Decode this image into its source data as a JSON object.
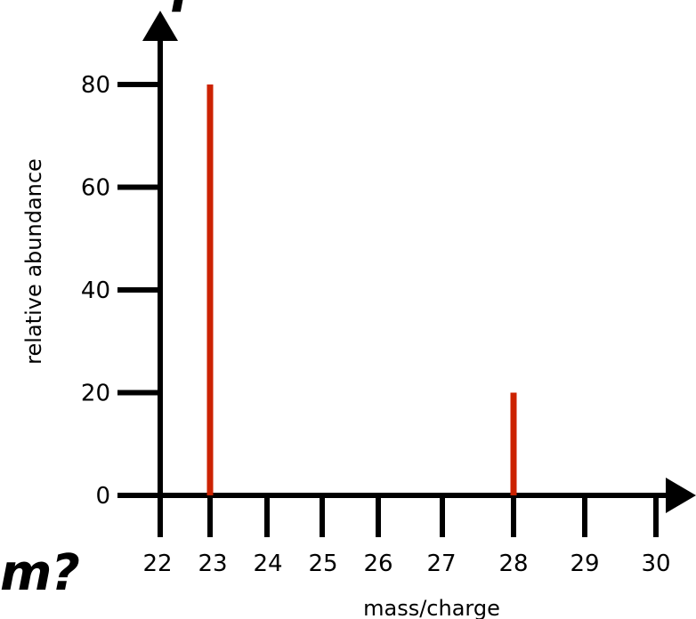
{
  "fragments": {
    "top": "f",
    "bottom": "m?"
  },
  "chart_data": {
    "type": "bar",
    "x": [
      23,
      28
    ],
    "values": [
      80,
      20
    ],
    "xlabel": "mass/charge",
    "ylabel": "relative abundance",
    "xlim": [
      22,
      30
    ],
    "ylim": [
      0,
      80
    ],
    "xticks": [
      "22",
      "23",
      "24",
      "25",
      "26",
      "27",
      "28",
      "29",
      "30"
    ],
    "yticks": [
      "0",
      "20",
      "40",
      "60",
      "80"
    ],
    "bar_color": "#cc2200",
    "grid": false
  }
}
